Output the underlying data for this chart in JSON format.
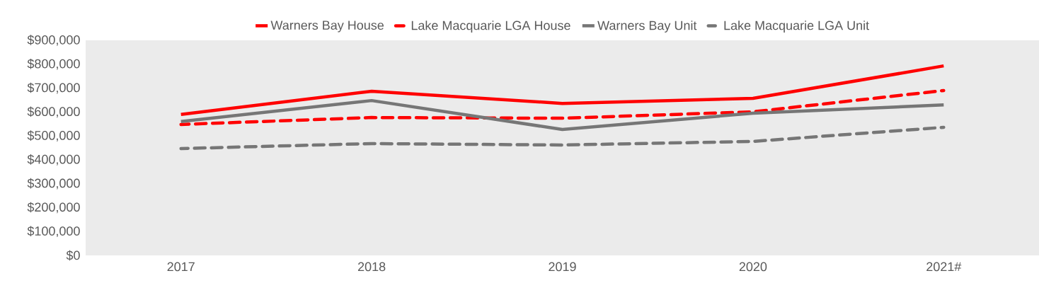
{
  "chart_data": {
    "type": "line",
    "categories": [
      "2017",
      "2018",
      "2019",
      "2020",
      "2021#"
    ],
    "series": [
      {
        "name": "Warners Bay House",
        "color": "#ff0000",
        "line_style": "solid",
        "values": [
          590000,
          687000,
          636000,
          657000,
          793000
        ]
      },
      {
        "name": "Lake Macquarie LGA House",
        "color": "#ff0000",
        "line_style": "dashed",
        "values": [
          548000,
          577000,
          574000,
          601000,
          690000
        ]
      },
      {
        "name": "Warners Bay Unit",
        "color": "#767676",
        "line_style": "solid",
        "values": [
          560000,
          648000,
          527000,
          595000,
          630000
        ]
      },
      {
        "name": "Lake Macquarie LGA Unit",
        "color": "#767676",
        "line_style": "dashed",
        "values": [
          447000,
          468000,
          462000,
          477000,
          536000
        ]
      }
    ],
    "ylim": [
      0,
      900000
    ],
    "yticks": [
      {
        "value": 0,
        "label": "$0"
      },
      {
        "value": 100000,
        "label": "$100,000"
      },
      {
        "value": 200000,
        "label": "$200,000"
      },
      {
        "value": 300000,
        "label": "$300,000"
      },
      {
        "value": 400000,
        "label": "$400,000"
      },
      {
        "value": 500000,
        "label": "$500,000"
      },
      {
        "value": 600000,
        "label": "$600,000"
      },
      {
        "value": 700000,
        "label": "$700,000"
      },
      {
        "value": 800000,
        "label": "$800,000"
      },
      {
        "value": 900000,
        "label": "$900,000"
      }
    ],
    "legend": "top",
    "grid": false,
    "marker": "none"
  }
}
